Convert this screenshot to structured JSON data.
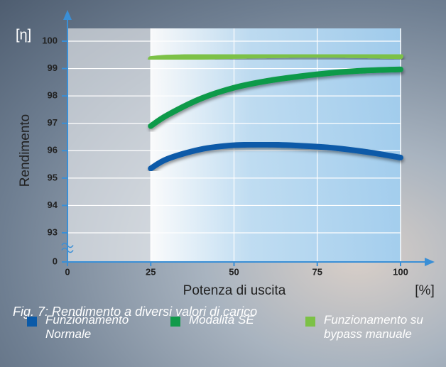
{
  "chart_data": {
    "type": "line",
    "y_unit_label": "[η]",
    "ylabel": "Rendimento",
    "xlabel": "Potenza di uscita",
    "x_unit_label": "[%]",
    "caption": "Fig. 7: Rendimento a diversi valori di carico",
    "x": [
      25,
      30,
      40,
      50,
      60,
      70,
      80,
      90,
      100
    ],
    "series": [
      {
        "name": "Funzionamento Normale",
        "color": "#0b5aa8",
        "values": [
          95.35,
          95.7,
          96.05,
          96.2,
          96.22,
          96.18,
          96.1,
          95.95,
          95.75
        ]
      },
      {
        "name": "Modalità SE",
        "color": "#119a4a",
        "values": [
          96.9,
          97.3,
          97.9,
          98.3,
          98.55,
          98.72,
          98.85,
          98.93,
          98.97
        ]
      },
      {
        "name": "Funzionamento su bypass manuale",
        "color": "#7cc146",
        "values": [
          99.35,
          99.4,
          99.43,
          99.46,
          99.48,
          99.5,
          99.5,
          99.48,
          99.45
        ]
      }
    ],
    "xlim": [
      0,
      100
    ],
    "xticks": [
      0,
      25,
      50,
      75,
      100
    ],
    "ylim": [
      0,
      100
    ],
    "yticks": [
      0,
      93,
      94,
      95,
      96,
      97,
      98,
      99,
      100
    ],
    "axis_break": [
      0,
      93
    ],
    "grid": true
  }
}
